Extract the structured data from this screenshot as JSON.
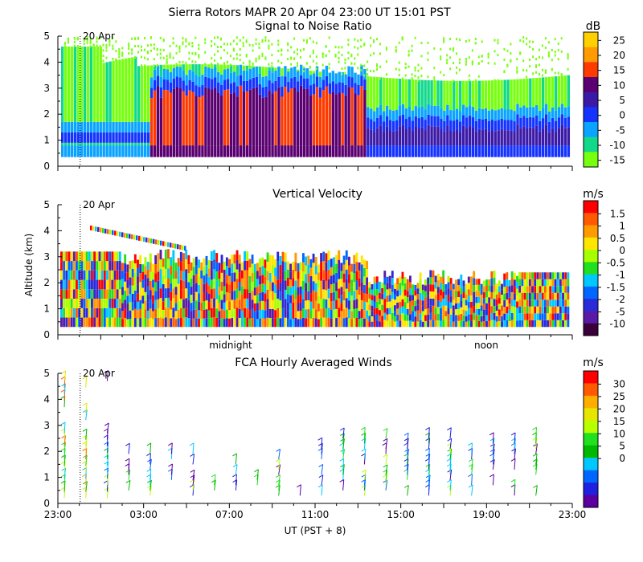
{
  "header": {
    "title": "Sierra Rotors   MAPR 20 Apr 04   23:00 UT   15:01   PST"
  },
  "chart_data": [
    {
      "type": "heatmap",
      "title": "Signal to Noise Ratio",
      "date_marker": "20 Apr",
      "y_ticks": [
        "0",
        "1",
        "2",
        "3",
        "4",
        "5"
      ],
      "ylim": [
        0,
        5
      ],
      "colorbar": {
        "unit": "dB",
        "labels": [
          "25",
          "20",
          "15",
          "10",
          "5",
          "0",
          "-5",
          "-10",
          "-15"
        ],
        "colors": [
          "#ffd000",
          "#ff9a00",
          "#ff3a00",
          "#5a0070",
          "#3c1aa8",
          "#1533ff",
          "#0aa3ff",
          "#12d98a",
          "#78ff10"
        ]
      }
    },
    {
      "type": "heatmap",
      "title": "Vertical Velocity",
      "date_marker": "20 Apr",
      "ylabel": "Altitude (km)",
      "y_ticks": [
        "0",
        "1",
        "2",
        "3",
        "4",
        "5"
      ],
      "ylim": [
        0,
        5
      ],
      "x_annotations": [
        "midnight",
        "noon"
      ],
      "colorbar": {
        "unit": "m/s",
        "labels": [
          "1.5",
          "1",
          "0.5",
          "0",
          "-0.5",
          "-1",
          "-1.5",
          "-2",
          "-5",
          "-10"
        ],
        "colors": [
          "#ff0000",
          "#ff5a00",
          "#ff9a00",
          "#ffe600",
          "#a8ff00",
          "#20e020",
          "#00c8ff",
          "#0066ff",
          "#2a2ad8",
          "#5a1aa8",
          "#3a003a"
        ]
      }
    },
    {
      "type": "scatter",
      "title": "FCA Hourly Averaged Winds",
      "date_marker": "20 Apr",
      "y_ticks": [
        "0",
        "1",
        "2",
        "3",
        "4",
        "5"
      ],
      "ylim": [
        0,
        5
      ],
      "x_ticks": [
        "23:00",
        "03:00",
        "07:00",
        "11:00",
        "15:00",
        "19:00",
        "23:00"
      ],
      "xlabel": "UT  (PST + 8)",
      "colorbar": {
        "unit": "m/s",
        "labels": [
          "30",
          "25",
          "20",
          "15",
          "10",
          "5",
          "0"
        ],
        "colors": [
          "#ff0000",
          "#ff5a00",
          "#ffae00",
          "#e6e600",
          "#b8ff00",
          "#20e020",
          "#00b800",
          "#00c8ff",
          "#0066ff",
          "#2020e0",
          "#5a00a0"
        ]
      }
    }
  ]
}
